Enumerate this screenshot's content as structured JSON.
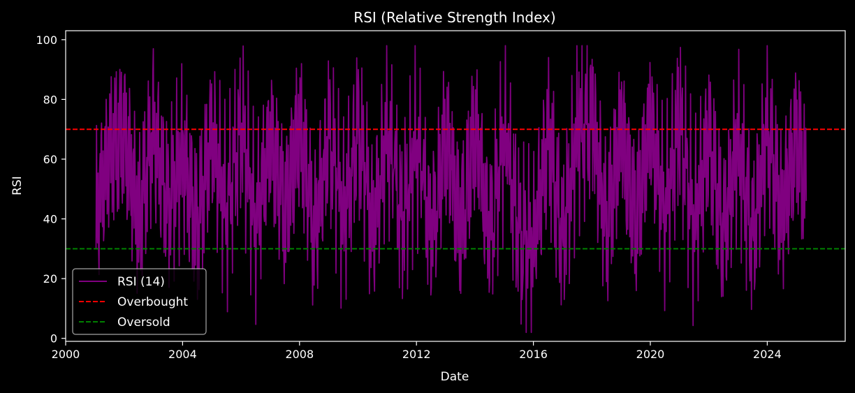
{
  "chart_data": {
    "type": "line",
    "title": "RSI (Relative Strength Index)",
    "xlabel": "Date",
    "ylabel": "RSI",
    "xlim": [
      "2000-01-01",
      "2026-09-01"
    ],
    "ylim": [
      -1,
      103
    ],
    "x_ticks": [
      "2000",
      "2004",
      "2008",
      "2012",
      "2016",
      "2020",
      "2024"
    ],
    "y_ticks": [
      0,
      20,
      40,
      60,
      80,
      100
    ],
    "grid": false,
    "legend_position": "lower-left",
    "background": "#000000",
    "series": [
      {
        "name": "RSI (14)",
        "color": "#800080",
        "style": "solid",
        "x": [
          "2001-01-15",
          "2001-07-01",
          "2002-01-01",
          "2002-07-01",
          "2003-01-01",
          "2003-07-01",
          "2004-01-01",
          "2004-07-01",
          "2005-01-01",
          "2005-07-01",
          "2006-01-01",
          "2006-07-01",
          "2007-01-01",
          "2007-07-01",
          "2008-01-01",
          "2008-07-01",
          "2009-01-01",
          "2009-07-01",
          "2010-01-01",
          "2010-07-01",
          "2011-01-01",
          "2011-07-01",
          "2012-01-01",
          "2012-07-01",
          "2013-01-01",
          "2013-07-01",
          "2014-01-01",
          "2014-07-01",
          "2015-01-01",
          "2015-07-01",
          "2016-01-01",
          "2016-07-01",
          "2017-01-01",
          "2017-07-01",
          "2018-01-01",
          "2018-07-01",
          "2019-01-01",
          "2019-07-01",
          "2020-01-01",
          "2020-07-01",
          "2021-01-01",
          "2021-07-01",
          "2022-01-01",
          "2022-07-01",
          "2023-01-01",
          "2023-07-01",
          "2024-01-01",
          "2024-07-01",
          "2025-01-01",
          "2025-05-01"
        ],
        "values": [
          30,
          75,
          89,
          25,
          91,
          35,
          72,
          18,
          88,
          30,
          97,
          20,
          86,
          28,
          95,
          12,
          90,
          25,
          93,
          17,
          90,
          22,
          82,
          13,
          87,
          18,
          91,
          12,
          87,
          16,
          3,
          87,
          9,
          88,
          98,
          18,
          88,
          23,
          94,
          30,
          96,
          20,
          85,
          14,
          82,
          10,
          92,
          27,
          87,
          46
        ]
      },
      {
        "name": "Overbought",
        "color": "#ff0000",
        "style": "dashed",
        "level": 70
      },
      {
        "name": "Oversold",
        "color": "#008000",
        "style": "dashed",
        "level": 30
      }
    ]
  }
}
